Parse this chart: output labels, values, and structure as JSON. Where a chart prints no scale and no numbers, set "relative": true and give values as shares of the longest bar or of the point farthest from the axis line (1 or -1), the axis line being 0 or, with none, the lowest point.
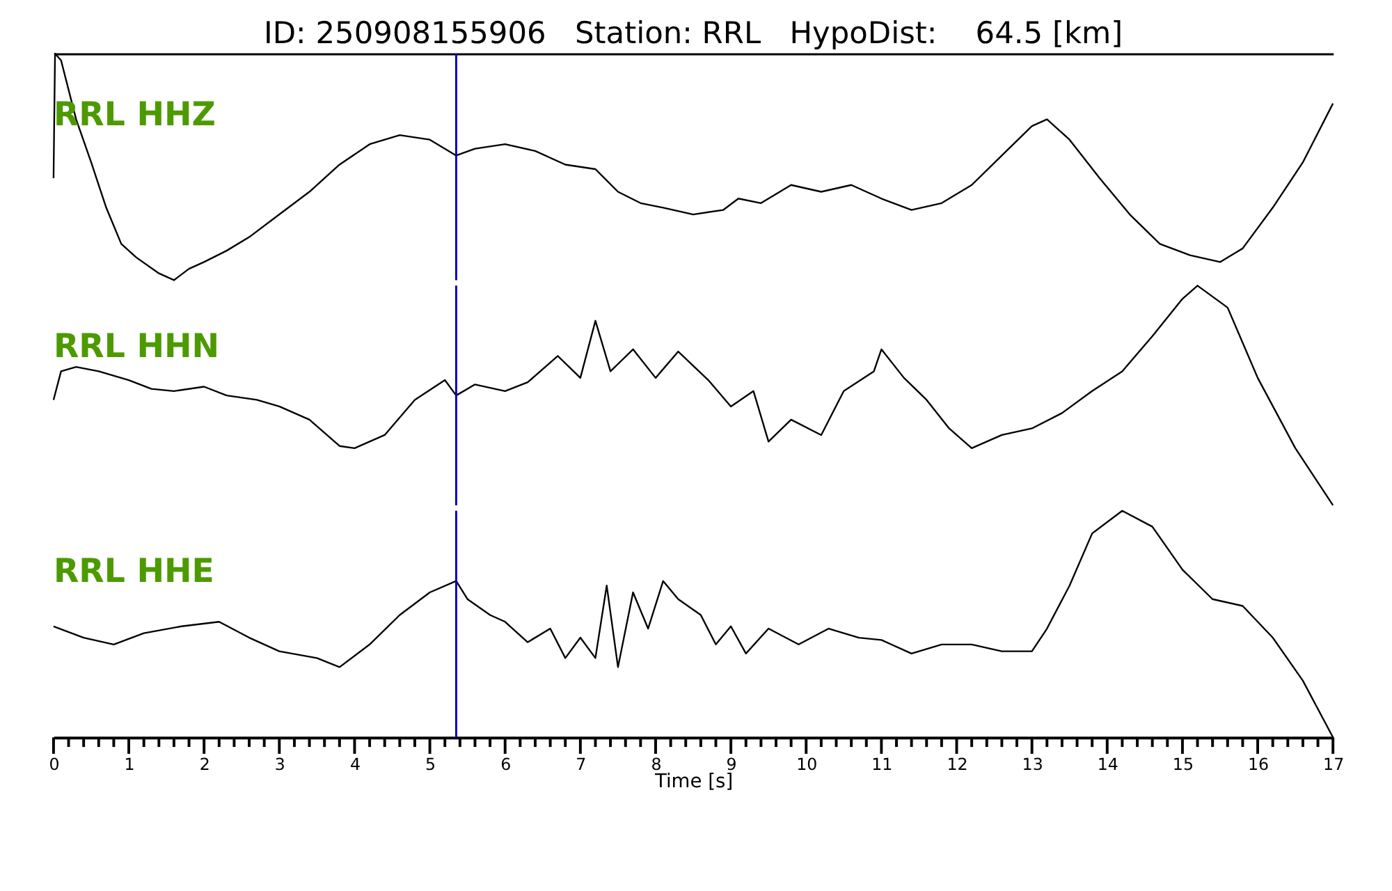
{
  "chart_data": [
    {
      "type": "line",
      "title": "ID: 250908155906   Station: RRL   HypoDist:    64.5 [km]",
      "relative": true,
      "xlim": [
        0,
        17
      ],
      "tick_labels": false,
      "grid": false,
      "legend": false,
      "marker": "none",
      "line_style": "solid",
      "annotations": [
        "RRL HHZ"
      ],
      "ref_lines": [
        {
          "axis": "x",
          "value": 5.35,
          "label": null,
          "color": "#0000cc"
        }
      ],
      "series": [
        {
          "color": "#000000",
          "x": [
            0,
            0.02,
            0.1,
            0.3,
            0.5,
            0.7,
            0.9,
            1.1,
            1.4,
            1.6,
            1.8,
            2.0,
            2.3,
            2.6,
            3.0,
            3.4,
            3.8,
            4.2,
            4.6,
            5.0,
            5.35,
            5.6,
            6.0,
            6.4,
            6.8,
            7.2,
            7.5,
            7.8,
            8.1,
            8.5,
            8.9,
            9.1,
            9.4,
            9.8,
            10.2,
            10.6,
            11.0,
            11.4,
            11.8,
            12.2,
            12.6,
            13.0,
            13.2,
            13.5,
            13.9,
            14.3,
            14.7,
            15.1,
            15.5,
            15.8,
            16.2,
            16.6,
            17.0
          ],
          "values": [
            0.45,
            1.0,
            0.97,
            0.71,
            0.52,
            0.32,
            0.16,
            0.1,
            0.03,
            0.0,
            0.05,
            0.08,
            0.13,
            0.19,
            0.29,
            0.39,
            0.51,
            0.6,
            0.64,
            0.62,
            0.55,
            0.58,
            0.6,
            0.57,
            0.51,
            0.49,
            0.39,
            0.34,
            0.32,
            0.29,
            0.31,
            0.36,
            0.34,
            0.42,
            0.39,
            0.42,
            0.36,
            0.31,
            0.34,
            0.42,
            0.55,
            0.68,
            0.71,
            0.62,
            0.45,
            0.29,
            0.16,
            0.11,
            0.08,
            0.14,
            0.32,
            0.52,
            0.78
          ]
        }
      ]
    },
    {
      "type": "line",
      "relative": true,
      "xlim": [
        0,
        17
      ],
      "tick_labels": false,
      "grid": false,
      "legend": false,
      "marker": "none",
      "line_style": "solid",
      "annotations": [
        "RRL HHN"
      ],
      "ref_lines": [
        {
          "axis": "x",
          "value": 5.35,
          "label": null,
          "color": "#0000cc"
        }
      ],
      "series": [
        {
          "color": "#000000",
          "x": [
            0,
            0.1,
            0.3,
            0.6,
            1.0,
            1.3,
            1.6,
            2.0,
            2.3,
            2.7,
            3.0,
            3.4,
            3.8,
            4.0,
            4.4,
            4.8,
            5.2,
            5.35,
            5.6,
            6.0,
            6.3,
            6.7,
            7.0,
            7.2,
            7.4,
            7.7,
            8.0,
            8.3,
            8.7,
            9.0,
            9.3,
            9.5,
            9.8,
            10.2,
            10.5,
            10.9,
            11.0,
            11.3,
            11.6,
            11.9,
            12.2,
            12.6,
            13.0,
            13.4,
            13.8,
            14.2,
            14.6,
            15.0,
            15.2,
            15.6,
            16.0,
            16.5,
            17.0
          ],
          "values": [
            0.48,
            0.61,
            0.63,
            0.61,
            0.57,
            0.53,
            0.52,
            0.54,
            0.5,
            0.48,
            0.45,
            0.39,
            0.27,
            0.26,
            0.32,
            0.48,
            0.57,
            0.5,
            0.55,
            0.52,
            0.56,
            0.68,
            0.58,
            0.84,
            0.61,
            0.71,
            0.58,
            0.7,
            0.57,
            0.45,
            0.52,
            0.29,
            0.39,
            0.32,
            0.52,
            0.61,
            0.71,
            0.58,
            0.48,
            0.35,
            0.26,
            0.32,
            0.35,
            0.42,
            0.52,
            0.61,
            0.77,
            0.94,
            1.0,
            0.9,
            0.58,
            0.26,
            0.0
          ]
        }
      ]
    },
    {
      "type": "line",
      "relative": true,
      "xlim": [
        0,
        17
      ],
      "xlabel": "Time [s]",
      "tick_labels": "x",
      "grid": false,
      "legend": false,
      "marker": "none",
      "line_style": "solid",
      "xticks": [
        0,
        {
          "value": 0.2,
          "label": null
        },
        {
          "value": 0.4,
          "label": null
        },
        {
          "value": 0.6,
          "label": null
        },
        {
          "value": 0.8,
          "label": null
        },
        1,
        {
          "value": 1.2,
          "label": null
        },
        {
          "value": 1.4,
          "label": null
        },
        {
          "value": 1.6,
          "label": null
        },
        {
          "value": 1.8,
          "label": null
        },
        2,
        {
          "value": 2.2,
          "label": null
        },
        {
          "value": 2.4,
          "label": null
        },
        {
          "value": 2.6,
          "label": null
        },
        {
          "value": 2.8,
          "label": null
        },
        3,
        {
          "value": 3.2,
          "label": null
        },
        {
          "value": 3.4,
          "label": null
        },
        {
          "value": 3.6,
          "label": null
        },
        {
          "value": 3.8,
          "label": null
        },
        4,
        {
          "value": 4.2,
          "label": null
        },
        {
          "value": 4.4,
          "label": null
        },
        {
          "value": 4.6,
          "label": null
        },
        {
          "value": 4.8,
          "label": null
        },
        5,
        {
          "value": 5.2,
          "label": null
        },
        {
          "value": 5.4,
          "label": null
        },
        {
          "value": 5.6,
          "label": null
        },
        {
          "value": 5.8,
          "label": null
        },
        6,
        {
          "value": 6.2,
          "label": null
        },
        {
          "value": 6.4,
          "label": null
        },
        {
          "value": 6.6,
          "label": null
        },
        {
          "value": 6.8,
          "label": null
        },
        7,
        {
          "value": 7.2,
          "label": null
        },
        {
          "value": 7.4,
          "label": null
        },
        {
          "value": 7.6,
          "label": null
        },
        {
          "value": 7.8,
          "label": null
        },
        8,
        {
          "value": 8.2,
          "label": null
        },
        {
          "value": 8.4,
          "label": null
        },
        {
          "value": 8.6,
          "label": null
        },
        {
          "value": 8.8,
          "label": null
        },
        9,
        {
          "value": 9.2,
          "label": null
        },
        {
          "value": 9.4,
          "label": null
        },
        {
          "value": 9.6,
          "label": null
        },
        {
          "value": 9.8,
          "label": null
        },
        10,
        {
          "value": 10.2,
          "label": null
        },
        {
          "value": 10.4,
          "label": null
        },
        {
          "value": 10.6,
          "label": null
        },
        {
          "value": 10.8,
          "label": null
        },
        11,
        {
          "value": 11.2,
          "label": null
        },
        {
          "value": 11.4,
          "label": null
        },
        {
          "value": 11.6,
          "label": null
        },
        {
          "value": 11.8,
          "label": null
        },
        12,
        {
          "value": 12.2,
          "label": null
        },
        {
          "value": 12.4,
          "label": null
        },
        {
          "value": 12.6,
          "label": null
        },
        {
          "value": 12.8,
          "label": null
        },
        13,
        {
          "value": 13.2,
          "label": null
        },
        {
          "value": 13.4,
          "label": null
        },
        {
          "value": 13.6,
          "label": null
        },
        {
          "value": 13.8,
          "label": null
        },
        14,
        {
          "value": 14.2,
          "label": null
        },
        {
          "value": 14.4,
          "label": null
        },
        {
          "value": 14.6,
          "label": null
        },
        {
          "value": 14.8,
          "label": null
        },
        15,
        {
          "value": 15.2,
          "label": null
        },
        {
          "value": 15.4,
          "label": null
        },
        {
          "value": 15.6,
          "label": null
        },
        {
          "value": 15.8,
          "label": null
        },
        16,
        {
          "value": 16.2,
          "label": null
        },
        {
          "value": 16.4,
          "label": null
        },
        {
          "value": 16.6,
          "label": null
        },
        {
          "value": 16.8,
          "label": null
        },
        17
      ],
      "annotations": [
        "RRL HHE"
      ],
      "ref_lines": [
        {
          "axis": "x",
          "value": 5.35,
          "label": null,
          "color": "#0000cc"
        }
      ],
      "series": [
        {
          "color": "#000000",
          "x": [
            0,
            0.4,
            0.8,
            1.2,
            1.7,
            2.2,
            2.6,
            3.0,
            3.5,
            3.8,
            4.2,
            4.6,
            5.0,
            5.35,
            5.5,
            5.8,
            6.0,
            6.3,
            6.6,
            6.8,
            7.0,
            7.2,
            7.35,
            7.5,
            7.7,
            7.9,
            8.1,
            8.3,
            8.6,
            8.8,
            9.0,
            9.2,
            9.5,
            9.9,
            10.3,
            10.7,
            11.0,
            11.4,
            11.8,
            12.2,
            12.6,
            13.0,
            13.2,
            13.5,
            13.8,
            14.2,
            14.6,
            15.0,
            15.4,
            15.8,
            16.2,
            16.6,
            17.0
          ],
          "values": [
            0.49,
            0.44,
            0.41,
            0.46,
            0.49,
            0.51,
            0.44,
            0.38,
            0.35,
            0.31,
            0.41,
            0.54,
            0.64,
            0.69,
            0.61,
            0.54,
            0.51,
            0.42,
            0.48,
            0.35,
            0.44,
            0.35,
            0.67,
            0.31,
            0.64,
            0.48,
            0.69,
            0.61,
            0.54,
            0.41,
            0.49,
            0.37,
            0.48,
            0.41,
            0.48,
            0.44,
            0.43,
            0.37,
            0.41,
            0.41,
            0.38,
            0.38,
            0.48,
            0.67,
            0.9,
            1.0,
            0.93,
            0.74,
            0.61,
            0.58,
            0.44,
            0.25,
            0.0
          ]
        }
      ]
    }
  ]
}
